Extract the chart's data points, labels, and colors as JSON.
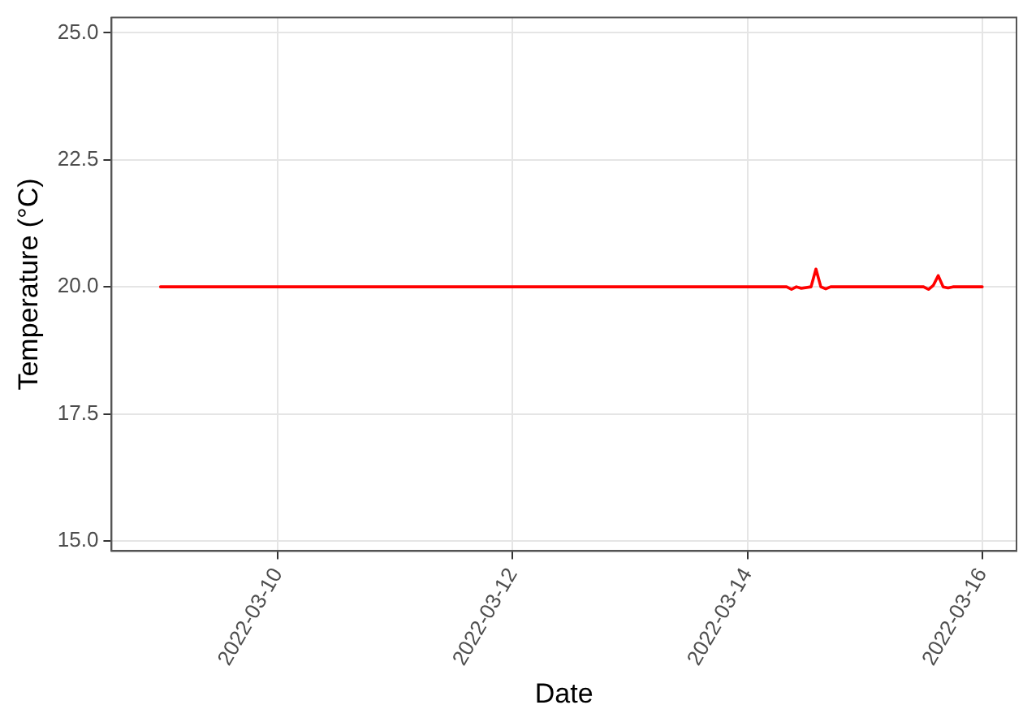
{
  "chart_data": {
    "type": "line",
    "xlabel": "Date",
    "ylabel": "Temperature (°C)",
    "x": [
      "2022-03-09T00:00",
      "2022-03-14T08:00",
      "2022-03-14T09:00",
      "2022-03-14T10:00",
      "2022-03-14T11:00",
      "2022-03-14T13:00",
      "2022-03-14T14:00",
      "2022-03-14T15:00",
      "2022-03-14T16:00",
      "2022-03-14T17:00",
      "2022-03-15T12:00",
      "2022-03-15T13:00",
      "2022-03-15T14:00",
      "2022-03-15T15:00",
      "2022-03-15T16:00",
      "2022-03-15T17:00",
      "2022-03-15T18:00",
      "2022-03-16T00:00"
    ],
    "series": [
      {
        "color": "#ff0000",
        "values": [
          20,
          20,
          19.95,
          20,
          19.97,
          20,
          20.35,
          20,
          19.96,
          20,
          20,
          19.95,
          20.03,
          20.22,
          20,
          19.98,
          20,
          20
        ]
      }
    ],
    "xlim": [
      "2022-03-08T14:00",
      "2022-03-16T07:00"
    ],
    "xticks": [
      "2022-03-10",
      "2022-03-12",
      "2022-03-14",
      "2022-03-16"
    ],
    "ylim": [
      14.8,
      25.3
    ],
    "yticks": [
      {
        "value": 15,
        "label": "15.0"
      },
      17.5,
      {
        "value": 20,
        "label": "20.0"
      },
      22.5,
      {
        "value": 25,
        "label": "25.0"
      }
    ],
    "grid": true,
    "legend": false,
    "marker": "none",
    "line_style": "solid"
  }
}
